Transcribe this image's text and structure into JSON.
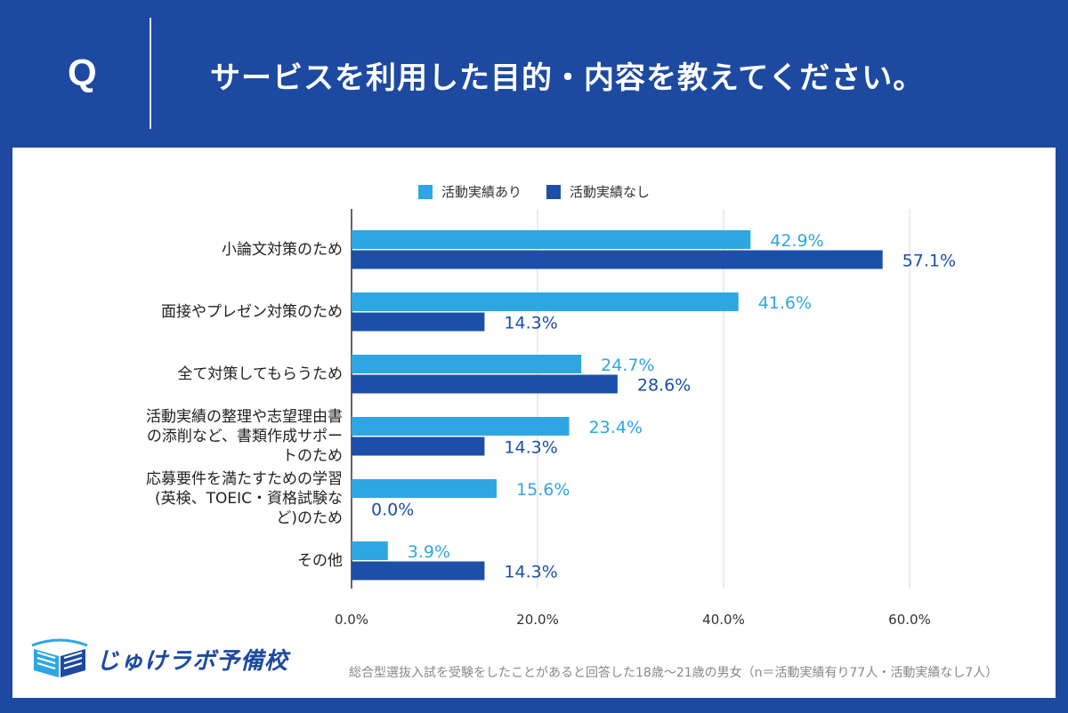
{
  "header": {
    "q_mark": "Q",
    "question": "サービスを利用した目的・内容を教えてください。"
  },
  "colors": {
    "series_a": "#2ea6e3",
    "series_b": "#1c4fa8",
    "grid": "#d8d8d8",
    "axis": "#333333"
  },
  "chart_data": {
    "type": "bar",
    "orientation": "horizontal",
    "categories": [
      "小論文対策のため",
      "面接やプレゼン対策のため",
      "全て対策してもらうため",
      "活動実績の整理や志望理由書\nの添削など、書類作成サポー\nトのため",
      "応募要件を満たすための学習\n(英検、TOEIC・資格試験な\nど)のため",
      "その他"
    ],
    "series": [
      {
        "name": "活動実績あり",
        "values": [
          42.9,
          41.6,
          24.7,
          23.4,
          15.6,
          3.9
        ],
        "labels": [
          "42.9%",
          "41.6%",
          "24.7%",
          "23.4%",
          "15.6%",
          "3.9%"
        ]
      },
      {
        "name": "活動実績なし",
        "values": [
          57.1,
          14.3,
          28.6,
          14.3,
          0.0,
          14.3
        ],
        "labels": [
          "57.1%",
          "14.3%",
          "28.6%",
          "14.3%",
          "0.0%",
          "14.3%"
        ]
      }
    ],
    "xlim": [
      0,
      60
    ],
    "x_ticks": [
      0,
      20,
      40,
      60
    ],
    "x_tick_labels": [
      "0.0%",
      "20.0%",
      "40.0%",
      "60.0%"
    ],
    "legend_position": "top-center"
  },
  "footer": {
    "logo_text": "じゅけラボ予備校",
    "note": "総合型選抜入試を受験をしたことがあると回答した18歳～21歳の男女（n＝活動実績有り77人・活動実績なし7人）"
  }
}
